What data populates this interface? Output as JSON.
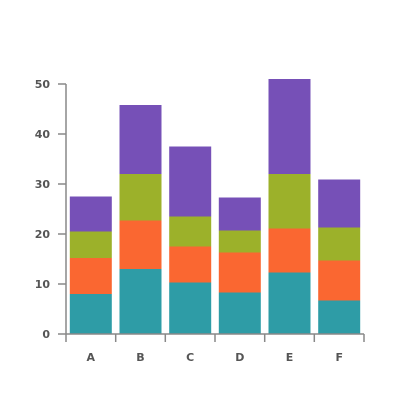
{
  "chart_data": {
    "type": "bar",
    "stacked": true,
    "title": "",
    "xlabel": "",
    "ylabel": "",
    "categories": [
      "A",
      "B",
      "C",
      "D",
      "E",
      "F"
    ],
    "ylim": [
      0,
      50
    ],
    "yticks": [
      0,
      10,
      20,
      30,
      40,
      50
    ],
    "grid": false,
    "legend": "none",
    "series": [
      {
        "color": "#2E9CA6",
        "values": [
          8,
          13,
          10.3,
          8.3,
          12.3,
          6.7
        ]
      },
      {
        "color": "#FA6731",
        "values": [
          7.2,
          9.7,
          7.2,
          8,
          8.8,
          8
        ]
      },
      {
        "color": "#9CB12A",
        "values": [
          5.3,
          9.3,
          6,
          4.4,
          10.9,
          6.6
        ]
      },
      {
        "color": "#7650B7",
        "values": [
          7,
          13.8,
          14,
          6.6,
          19,
          9.6
        ]
      }
    ]
  }
}
